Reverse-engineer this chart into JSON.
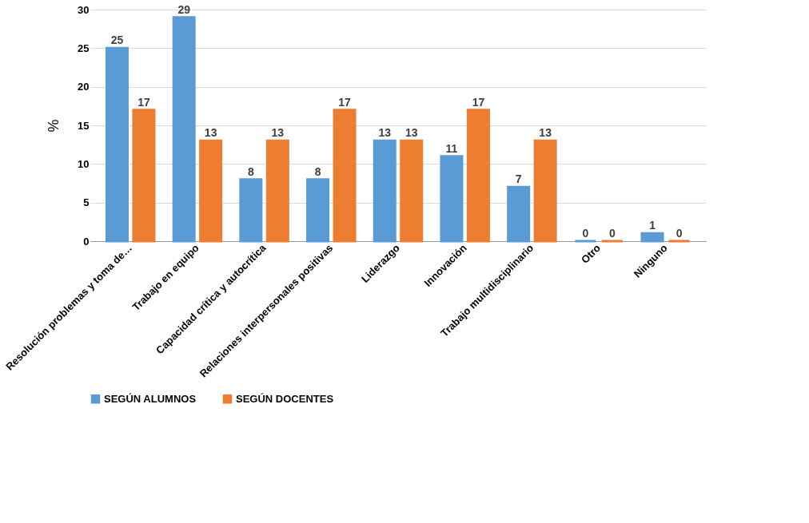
{
  "chart_data": {
    "type": "bar",
    "ylabel": "%",
    "categories": [
      "Resolución problemas y toma de…",
      "Trabajo en equipo",
      "Capacidad crítica y autocrítica",
      "Relaciones interpersonales positivas",
      "Liderazgo",
      "Innovación",
      "Trabajo multidisciplinario",
      "Otro",
      "Ninguno"
    ],
    "series": [
      {
        "name": "SEGÚN ALUMNOS",
        "color": "#5b9bd5",
        "values": [
          25,
          29,
          8,
          8,
          13,
          11,
          7,
          0,
          1
        ]
      },
      {
        "name": "SEGÚN DOCENTES",
        "color": "#ed7d31",
        "values": [
          17,
          13,
          13,
          17,
          13,
          17,
          13,
          0,
          0
        ]
      }
    ],
    "ylim": [
      0,
      30
    ],
    "yticks": [
      0,
      5,
      10,
      15,
      20,
      25,
      30
    ],
    "grid": "y",
    "legend": "bottom",
    "data_labels": true
  }
}
